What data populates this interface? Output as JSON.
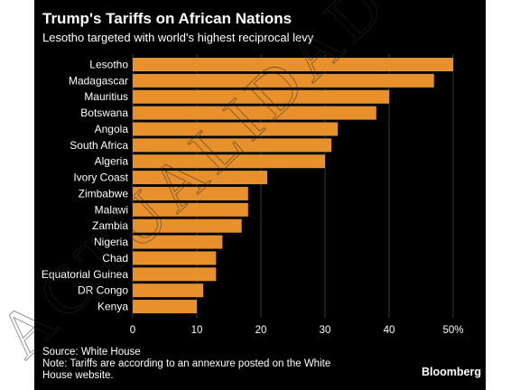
{
  "chart_data": {
    "type": "bar",
    "orientation": "horizontal",
    "title": "Trump's Tariffs on African Nations",
    "subtitle": "Lesotho targeted with world's highest reciprocal levy",
    "categories": [
      "Lesotho",
      "Madagascar",
      "Mauritius",
      "Botswana",
      "Angola",
      "South Africa",
      "Algeria",
      "Ivory Coast",
      "Zimbabwe",
      "Malawi",
      "Zambia",
      "Nigeria",
      "Chad",
      "Equatorial Guinea",
      "DR Congo",
      "Kenya"
    ],
    "values": [
      50,
      47,
      40,
      38,
      32,
      31,
      30,
      21,
      18,
      18,
      17,
      14,
      13,
      13,
      11,
      10
    ],
    "x_ticks": [
      "0",
      "10",
      "20",
      "30",
      "40",
      "50%"
    ],
    "xlim": [
      0,
      50
    ],
    "grid": true,
    "legend": "none",
    "bar_color": "#e8912c"
  },
  "footer": {
    "source": "Source: White House",
    "note": "Note: Tariffs are according to an annexure posted on the White House website."
  },
  "brand": "Bloomberg",
  "watermark_text": "ACTUALIDAD AFRICANA.COM"
}
